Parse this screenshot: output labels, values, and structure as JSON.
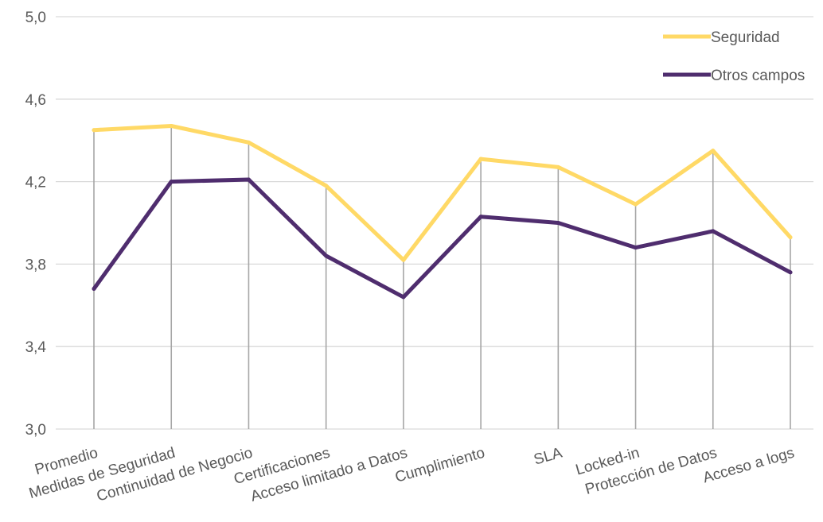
{
  "chart_data": {
    "type": "line",
    "categories": [
      "Promedio",
      "Medidas de Seguridad",
      "Continuidad de Negocio",
      "Certificaciones",
      "Acceso limitado a Datos",
      "Cumplimiento",
      "SLA",
      "Locked-in",
      "Protección de Datos",
      "Acceso a logs"
    ],
    "series": [
      {
        "name": "Seguridad",
        "color": "#FFD966",
        "values": [
          4.45,
          4.47,
          4.39,
          4.18,
          3.82,
          4.31,
          4.27,
          4.09,
          4.35,
          3.93
        ]
      },
      {
        "name": "Otros campos",
        "color": "#4F2D6E",
        "values": [
          3.68,
          4.2,
          4.21,
          3.84,
          3.64,
          4.03,
          4.0,
          3.88,
          3.96,
          3.76
        ]
      }
    ],
    "ylim": [
      3.0,
      5.0
    ],
    "yticks": [
      "3,0",
      "3,4",
      "3,8",
      "4,2",
      "4,6",
      "5,0"
    ],
    "ytick_values": [
      3.0,
      3.4,
      3.8,
      4.2,
      4.6,
      5.0
    ],
    "grid": true,
    "drop_lines": true,
    "legend_position": "top-right",
    "title": "",
    "xlabel": "",
    "ylabel": ""
  }
}
